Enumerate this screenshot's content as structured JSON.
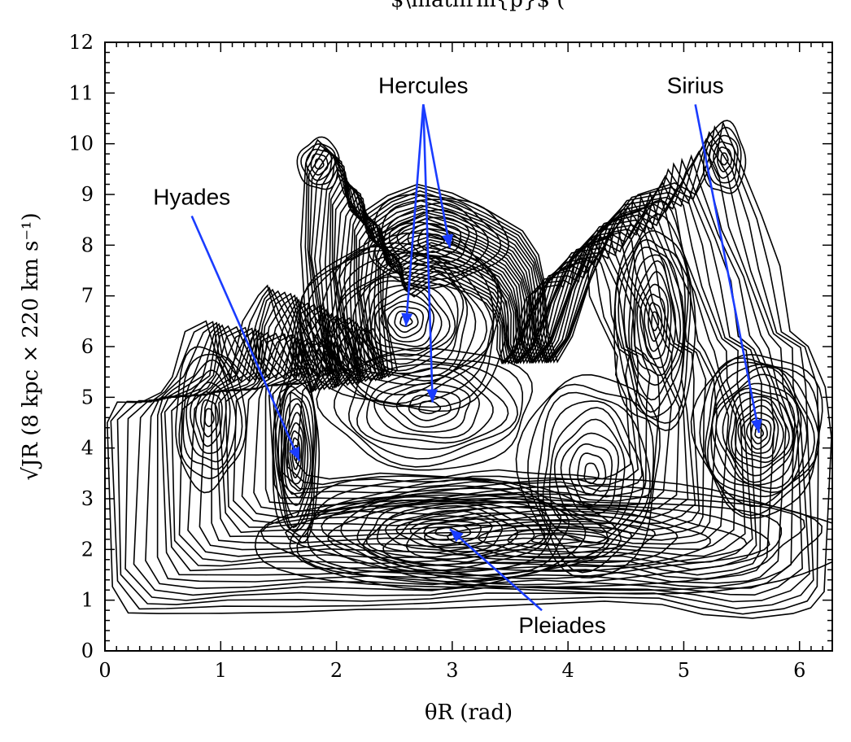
{
  "chart_data": {
    "type": "contour",
    "title_cropped": "$\\mathrm{p}$ (",
    "xlabel": "θR (rad)",
    "ylabel": "√JR (8 kpc × 220 km s⁻¹)",
    "xlim": [
      0,
      6.283
    ],
    "ylim": [
      0,
      12
    ],
    "x_ticks": [
      0,
      1,
      2,
      3,
      4,
      5,
      6
    ],
    "y_ticks": [
      0,
      1,
      2,
      3,
      4,
      5,
      6,
      7,
      8,
      9,
      10,
      11,
      12
    ],
    "outline": [
      [
        0.02,
        4.5
      ],
      [
        0.15,
        4.9
      ],
      [
        0.3,
        4.9
      ],
      [
        0.45,
        5.1
      ],
      [
        0.6,
        5.4
      ],
      [
        0.72,
        6.3
      ],
      [
        0.85,
        6.5
      ],
      [
        0.95,
        5.8
      ],
      [
        1.1,
        5.3
      ],
      [
        1.2,
        6.5
      ],
      [
        1.3,
        7.0
      ],
      [
        1.4,
        7.2
      ],
      [
        1.5,
        6.6
      ],
      [
        1.6,
        5.9
      ],
      [
        1.75,
        5.1
      ],
      [
        1.85,
        5.4
      ],
      [
        1.75,
        6.5
      ],
      [
        1.68,
        8.0
      ],
      [
        1.72,
        9.6
      ],
      [
        1.85,
        10.1
      ],
      [
        1.98,
        9.8
      ],
      [
        2.05,
        9.0
      ],
      [
        2.2,
        8.6
      ],
      [
        2.45,
        9.0
      ],
      [
        2.7,
        9.2
      ],
      [
        3.0,
        9.0
      ],
      [
        3.3,
        8.7
      ],
      [
        3.6,
        8.3
      ],
      [
        3.75,
        7.8
      ],
      [
        3.8,
        7.3
      ],
      [
        3.82,
        6.3
      ],
      [
        3.9,
        5.7
      ],
      [
        4.05,
        6.2
      ],
      [
        4.2,
        7.3
      ],
      [
        4.4,
        8.5
      ],
      [
        4.6,
        9.0
      ],
      [
        4.95,
        9.2
      ],
      [
        5.1,
        9.0
      ],
      [
        5.25,
        9.8
      ],
      [
        5.35,
        10.4
      ],
      [
        5.5,
        9.7
      ],
      [
        5.65,
        8.6
      ],
      [
        5.8,
        7.6
      ],
      [
        5.95,
        6.3
      ],
      [
        6.1,
        6.0
      ],
      [
        6.18,
        5.2
      ],
      [
        6.26,
        4.2
      ],
      [
        6.26,
        1.2
      ],
      [
        6.1,
        0.85
      ],
      [
        5.9,
        0.7
      ],
      [
        5.6,
        0.65
      ],
      [
        5.2,
        0.75
      ],
      [
        4.8,
        0.9
      ],
      [
        4.3,
        0.95
      ],
      [
        3.8,
        0.95
      ],
      [
        3.3,
        0.9
      ],
      [
        2.8,
        0.8
      ],
      [
        2.2,
        0.8
      ],
      [
        1.6,
        0.8
      ],
      [
        1.0,
        0.75
      ],
      [
        0.5,
        0.7
      ],
      [
        0.2,
        0.75
      ],
      [
        0.02,
        1.3
      ]
    ],
    "peaks": [
      {
        "x": 1.65,
        "y": 3.9,
        "sx": 0.2,
        "sy": 1.8,
        "n": 12
      },
      {
        "x": 2.6,
        "y": 6.5,
        "sx": 0.9,
        "sy": 1.8,
        "n": 18
      },
      {
        "x": 2.85,
        "y": 8.1,
        "sx": 0.6,
        "sy": 0.9,
        "n": 8
      },
      {
        "x": 2.8,
        "y": 4.8,
        "sx": 0.9,
        "sy": 1.2,
        "n": 10
      },
      {
        "x": 2.95,
        "y": 2.35,
        "sx": 1.4,
        "sy": 1.1,
        "n": 14
      },
      {
        "x": 5.65,
        "y": 4.3,
        "sx": 0.55,
        "sy": 1.6,
        "n": 16
      },
      {
        "x": 4.75,
        "y": 6.5,
        "sx": 0.35,
        "sy": 2.2,
        "n": 12
      },
      {
        "x": 1.85,
        "y": 9.6,
        "sx": 0.18,
        "sy": 0.5,
        "n": 5
      },
      {
        "x": 5.35,
        "y": 9.7,
        "sx": 0.18,
        "sy": 0.7,
        "n": 6
      },
      {
        "x": 0.9,
        "y": 4.6,
        "sx": 0.3,
        "sy": 1.4,
        "n": 8
      },
      {
        "x": 4.2,
        "y": 3.5,
        "sx": 0.6,
        "sy": 2.0,
        "n": 10
      },
      {
        "x": 3.9,
        "y": 2.2,
        "sx": 2.6,
        "sy": 1.1,
        "n": 12
      }
    ],
    "annotations": [
      {
        "text": "Hyades",
        "text_pos": [
          0.75,
          8.8
        ],
        "targets": [
          [
            1.68,
            3.75
          ]
        ]
      },
      {
        "text": "Hercules",
        "text_pos": [
          2.75,
          11.0
        ],
        "targets": [
          [
            2.6,
            6.4
          ],
          [
            2.98,
            7.95
          ],
          [
            2.83,
            4.9
          ]
        ]
      },
      {
        "text": "Sirius",
        "text_pos": [
          5.1,
          11.0
        ],
        "targets": [
          [
            5.65,
            4.3
          ]
        ]
      },
      {
        "text": "Pleiades",
        "text_pos": [
          3.95,
          0.35
        ],
        "targets": [
          [
            2.98,
            2.4
          ]
        ]
      }
    ],
    "colors": {
      "contour": "#000000",
      "arrow": "#1a3cff"
    },
    "grid": false,
    "legend": "none"
  }
}
